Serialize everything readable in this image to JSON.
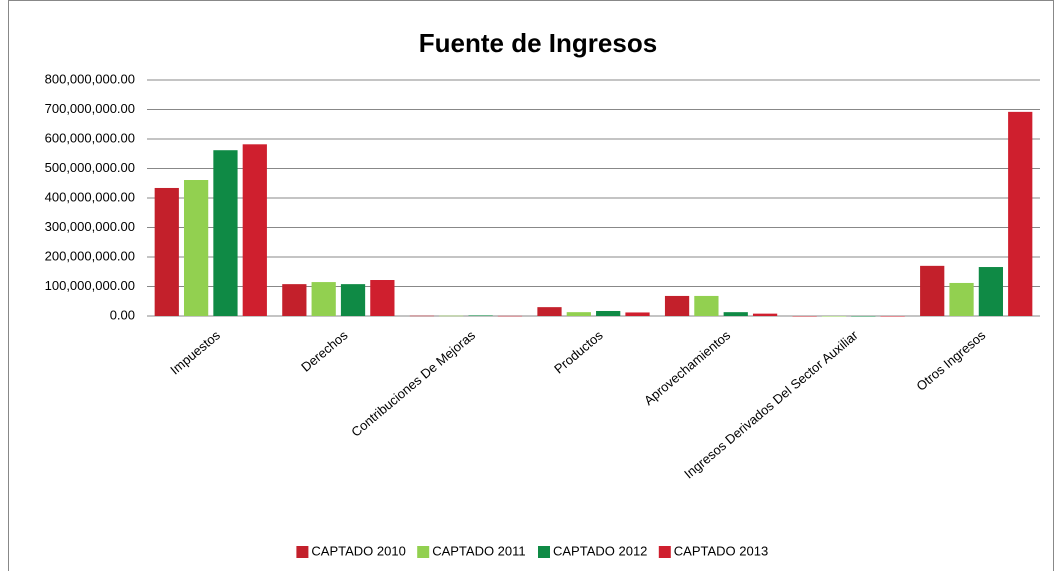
{
  "chart_data": {
    "type": "bar",
    "title": "Fuente de Ingresos",
    "categories": [
      "Impuestos",
      "Derechos",
      "Contribuciones De Mejoras",
      "Productos",
      "Aprovechamientos",
      "Ingresos  Derivados Del Sector Auxiliar",
      "Otros Ingresos"
    ],
    "series": [
      {
        "name": "CAPTADO 2010",
        "color": "#c3202b",
        "values": [
          434000000,
          108000000,
          1000000,
          30000000,
          68000000,
          0,
          170000000
        ]
      },
      {
        "name": "CAPTADO 2011",
        "color": "#92d050",
        "values": [
          461000000,
          115000000,
          1000000,
          13000000,
          68000000,
          0,
          112000000
        ]
      },
      {
        "name": "CAPTADO 2012",
        "color": "#0f8a45",
        "values": [
          562000000,
          108000000,
          2000000,
          17000000,
          13000000,
          0,
          166000000
        ]
      },
      {
        "name": "CAPTADO 2013",
        "color": "#cf1f2e",
        "values": [
          582000000,
          122000000,
          500000,
          12000000,
          8000000,
          0,
          692000000
        ]
      }
    ],
    "ylim": [
      0,
      800000000
    ],
    "yticks": [
      {
        "value": 0,
        "label": "0.00"
      },
      {
        "value": 100000000,
        "label": "100,000,000.00"
      },
      {
        "value": 200000000,
        "label": "200,000,000.00"
      },
      {
        "value": 300000000,
        "label": "300,000,000.00"
      },
      {
        "value": 400000000,
        "label": "400,000,000.00"
      },
      {
        "value": 500000000,
        "label": "500,000,000.00"
      },
      {
        "value": 600000000,
        "label": "600,000,000.00"
      },
      {
        "value": 700000000,
        "label": "700,000,000.00"
      },
      {
        "value": 800000000,
        "label": "800,000,000.00"
      }
    ],
    "grid": true,
    "legend": "bottom"
  }
}
